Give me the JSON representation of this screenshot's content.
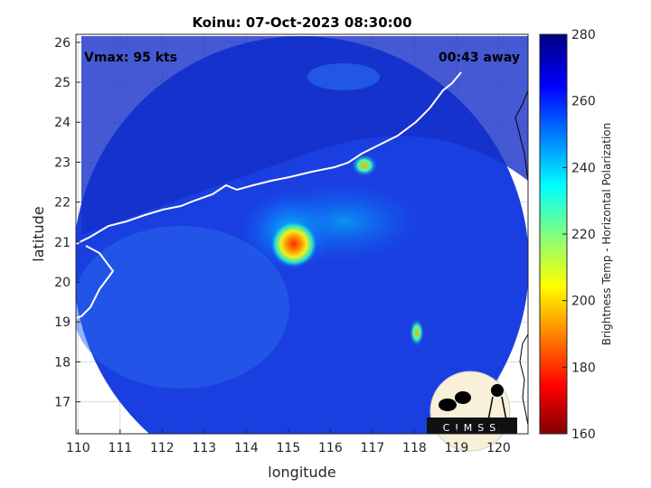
{
  "title": "Koinu: 07-Oct-2023 08:30:00",
  "vmax_label": "Vmax: 95 kts",
  "time_away_label": "00:43 away",
  "logo_text": "CIMSS",
  "chart_data": {
    "type": "heatmap",
    "title": "Koinu: 07-Oct-2023 08:30:00",
    "xlabel": "longitude",
    "ylabel": "latitude",
    "xlim": [
      109.95,
      120.7
    ],
    "ylim": [
      16.2,
      26.2
    ],
    "xticks": [
      110,
      111,
      112,
      113,
      114,
      115,
      116,
      117,
      118,
      119,
      120
    ],
    "yticks": [
      17,
      18,
      19,
      20,
      21,
      22,
      23,
      24,
      25,
      26
    ],
    "grid": true,
    "colorbar": {
      "label": "Brightness Temp - Horizontal Polarization",
      "range": [
        160,
        280
      ],
      "ticks": [
        160,
        180,
        200,
        220,
        240,
        260,
        280
      ],
      "colormap": "jet"
    },
    "storm_center": {
      "lon": 115.1,
      "lat": 20.9
    }
  }
}
